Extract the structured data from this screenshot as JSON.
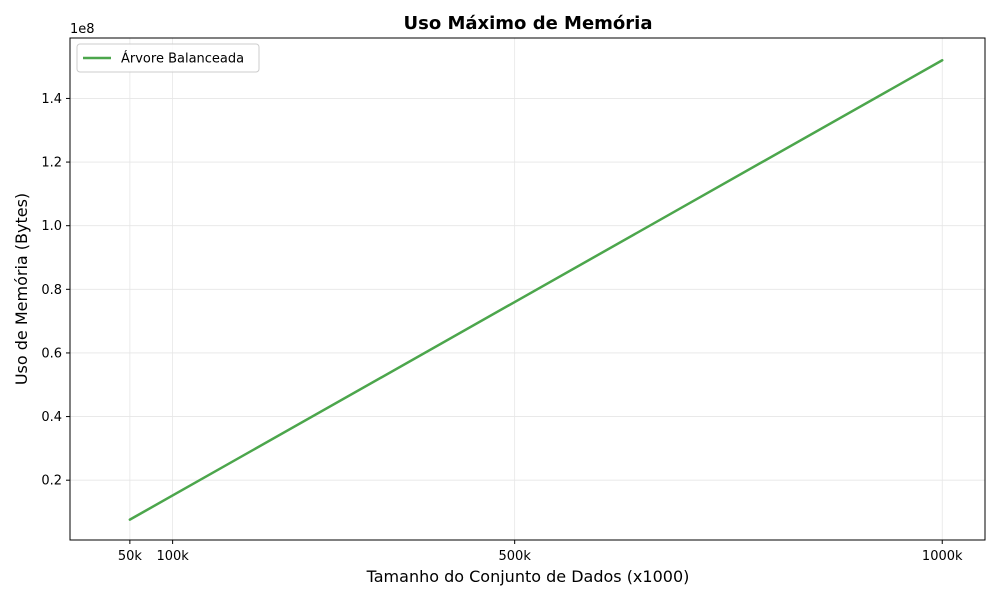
{
  "chart_data": {
    "type": "line",
    "title": "Uso Máximo de Memória",
    "xlabel": "Tamanho do Conjunto de Dados (x1000)",
    "ylabel": "Uso de Memória (Bytes)",
    "y_offset_label": "1e8",
    "y_scale": 100000000,
    "xlim": [
      -20,
      1050
    ],
    "ylim": [
      0.012,
      1.59
    ],
    "x_ticks": [
      {
        "value": 50,
        "label": "50k"
      },
      {
        "value": 100,
        "label": "100k"
      },
      {
        "value": 500,
        "label": "500k"
      },
      {
        "value": 1000,
        "label": "1000k"
      }
    ],
    "y_ticks": [
      {
        "value": 0.2,
        "label": "0.2"
      },
      {
        "value": 0.4,
        "label": "0.4"
      },
      {
        "value": 0.6,
        "label": "0.6"
      },
      {
        "value": 0.8,
        "label": "0.8"
      },
      {
        "value": 1.0,
        "label": "1.0"
      },
      {
        "value": 1.2,
        "label": "1.2"
      },
      {
        "value": 1.4,
        "label": "1.4"
      }
    ],
    "grid": true,
    "legend_position": "top-left",
    "series": [
      {
        "name": "Árvore Balanceada",
        "color": "#4ca64c",
        "x": [
          50,
          100,
          500,
          1000
        ],
        "y": [
          0.076,
          0.152,
          0.76,
          1.52
        ]
      }
    ]
  }
}
